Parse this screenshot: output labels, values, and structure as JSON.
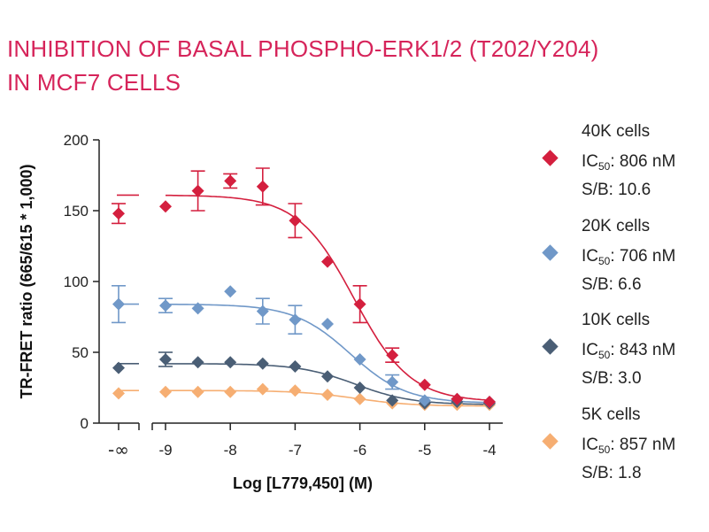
{
  "title_lines": [
    "INHIBITION OF BASAL PHOSPHO-ERK1/2 (T202/Y204)",
    "IN MCF7 CELLS"
  ],
  "colors": {
    "title": "#d6245a"
  },
  "chart_data": {
    "type": "scatter",
    "title": "INHIBITION OF BASAL PHOSPHO-ERK1/2 (T202/Y204) IN MCF7 CELLS",
    "xlabel": "Log [L779,450] (M)",
    "ylabel": "TR-FRET ratio (665/615 * 1,000)",
    "ylim": [
      0,
      200
    ],
    "xlim": [
      -9,
      -4
    ],
    "x_ticks": [
      -9,
      -8,
      -7,
      -6,
      -5,
      -4
    ],
    "x_tick_labels": [
      "-9",
      "-8",
      "-7",
      "-6",
      "-5",
      "-4"
    ],
    "x_break_label": "-∞",
    "y_ticks": [
      0,
      50,
      100,
      150,
      200
    ],
    "y_tick_labels": [
      "0",
      "50",
      "100",
      "150",
      "200"
    ],
    "legend_position": "right",
    "x": [
      -9,
      -8.5,
      -8,
      -7.5,
      -7,
      -6.5,
      -6,
      -5.5,
      -5,
      -4.5,
      -4
    ],
    "series": [
      {
        "name": "40K cells",
        "ic50": "806 nM",
        "sb": "10.6",
        "color": "#d41f3e",
        "basal": 148,
        "basal_err": 7,
        "values": [
          153,
          164,
          171,
          167,
          143,
          114,
          84,
          48,
          27,
          17,
          15
        ],
        "errors": [
          0,
          14,
          5,
          13,
          12,
          0,
          13,
          5,
          0,
          0,
          0
        ],
        "fit": {
          "top": 161,
          "bottom": 15,
          "logic50": -6.09,
          "hill": 1.0
        }
      },
      {
        "name": "20K cells",
        "ic50": "706 nM",
        "sb": "6.6",
        "color": "#7098c8",
        "basal": 84,
        "basal_err": 13,
        "values": [
          83,
          81,
          93,
          79,
          73,
          70,
          45,
          29,
          16,
          17,
          15
        ],
        "errors": [
          5,
          0,
          0,
          9,
          10,
          0,
          0,
          5,
          0,
          0,
          0
        ],
        "fit": {
          "top": 84,
          "bottom": 14,
          "logic50": -6.15,
          "hill": 1.0
        }
      },
      {
        "name": "10K cells",
        "ic50": "843 nM",
        "sb": "3.0",
        "color": "#4a5e75",
        "basal": 39,
        "basal_err": 0,
        "values": [
          45,
          43,
          43,
          42,
          40,
          33,
          25,
          16,
          14,
          15,
          14
        ],
        "errors": [
          5,
          0,
          0,
          0,
          0,
          0,
          0,
          0,
          0,
          0,
          0
        ],
        "fit": {
          "top": 42,
          "bottom": 13,
          "logic50": -6.07,
          "hill": 1.0
        }
      },
      {
        "name": "5K cells",
        "ic50": "857 nM",
        "sb": "1.8",
        "color": "#f6ae72",
        "basal": 21,
        "basal_err": 0,
        "values": [
          22,
          22,
          22,
          24,
          23,
          20,
          17,
          14,
          13,
          13,
          13
        ],
        "errors": [
          0,
          0,
          0,
          0,
          0,
          0,
          0,
          0,
          0,
          0,
          0
        ],
        "fit": {
          "top": 23,
          "bottom": 12,
          "logic50": -6.07,
          "hill": 1.0
        }
      }
    ]
  },
  "legend": [
    {
      "name": "40K cells",
      "ic_prefix": "IC",
      "ic_sub": "50",
      "ic_value": ": 806 nM",
      "sb": "S/B: 10.6"
    },
    {
      "name": "20K cells",
      "ic_prefix": "IC",
      "ic_sub": "50",
      "ic_value": ": 706 nM",
      "sb": "S/B: 6.6"
    },
    {
      "name": "10K cells",
      "ic_prefix": "IC",
      "ic_sub": "50",
      "ic_value": ": 843 nM",
      "sb": "S/B: 3.0"
    },
    {
      "name": "5K cells",
      "ic_prefix": "IC",
      "ic_sub": "50",
      "ic_value": ": 857 nM",
      "sb": "S/B: 1.8"
    }
  ]
}
